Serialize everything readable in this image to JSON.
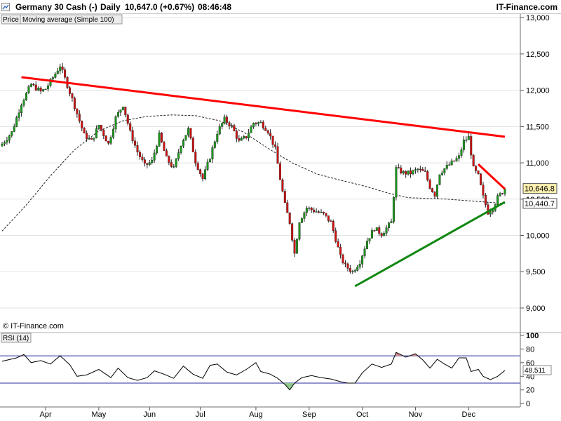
{
  "header": {
    "instrument": "Germany 30 Cash (-)",
    "interval": "Daily",
    "last_change": "10,647.0 (+0.67%)",
    "time": "08:46:48",
    "brand": "IT-Finance.com"
  },
  "legend": {
    "price_tab": "Price",
    "ma_tab": "Moving average (Simple 100)"
  },
  "watermark": "© IT-Finance.com",
  "rsi": {
    "label": "RSI (14)",
    "value_tag": "48.511"
  },
  "colors": {
    "up": "#1a9a1a",
    "down": "#d01010",
    "resistance": "#ff0000",
    "support": "#118811",
    "ma": "#222222",
    "osc_fill_over": "#d28a8a",
    "osc_fill_under": "#8cc88c"
  },
  "price_tags": {
    "last": "10,646.8",
    "hidden": "10,500",
    "ma": "10,440.7"
  },
  "chart_data": [
    {
      "type": "candlestick",
      "title": "Germany 30 Cash (-)",
      "ylim": [
        8700,
        13050
      ],
      "yticks": [
        9000,
        9500,
        10000,
        10500,
        11000,
        11500,
        12000,
        12500,
        13000
      ],
      "ytick_labels": [
        "9,000",
        "9,500",
        "10,000",
        "10,500",
        "11,000",
        "11,500",
        "12,000",
        "12,500",
        "13,000"
      ],
      "month_labels": [
        "Apr",
        "May",
        "Jun",
        "Jul",
        "Aug",
        "Sep",
        "Oct",
        "Nov",
        "Dec"
      ],
      "month_positions": [
        18,
        40,
        61,
        82,
        105,
        127,
        149,
        171,
        193
      ],
      "close_path": [
        [
          0,
          11260
        ],
        [
          4,
          11420
        ],
        [
          8,
          11820
        ],
        [
          12,
          12080
        ],
        [
          16,
          11980
        ],
        [
          18,
          12020
        ],
        [
          20,
          12120
        ],
        [
          24,
          12340
        ],
        [
          27,
          12070
        ],
        [
          30,
          11780
        ],
        [
          34,
          11380
        ],
        [
          37,
          11300
        ],
        [
          40,
          11520
        ],
        [
          44,
          11260
        ],
        [
          47,
          11620
        ],
        [
          50,
          11800
        ],
        [
          53,
          11420
        ],
        [
          56,
          11150
        ],
        [
          59,
          10960
        ],
        [
          62,
          11020
        ],
        [
          65,
          11380
        ],
        [
          68,
          11060
        ],
        [
          71,
          10920
        ],
        [
          74,
          11260
        ],
        [
          77,
          11460
        ],
        [
          80,
          11020
        ],
        [
          83,
          10780
        ],
        [
          86,
          11080
        ],
        [
          89,
          11420
        ],
        [
          92,
          11600
        ],
        [
          95,
          11500
        ],
        [
          98,
          11290
        ],
        [
          101,
          11360
        ],
        [
          104,
          11550
        ],
        [
          107,
          11550
        ],
        [
          110,
          11440
        ],
        [
          113,
          11190
        ],
        [
          115,
          10780
        ],
        [
          117,
          10420
        ],
        [
          119,
          10180
        ],
        [
          121,
          9750
        ],
        [
          123,
          10200
        ],
        [
          126,
          10380
        ],
        [
          130,
          10330
        ],
        [
          133,
          10290
        ],
        [
          136,
          10180
        ],
        [
          138,
          9950
        ],
        [
          140,
          9700
        ],
        [
          142,
          9580
        ],
        [
          145,
          9500
        ],
        [
          148,
          9640
        ],
        [
          151,
          9930
        ],
        [
          154,
          10100
        ],
        [
          157,
          10020
        ],
        [
          159,
          10100
        ],
        [
          161,
          10180
        ],
        [
          163,
          10920
        ],
        [
          166,
          10860
        ],
        [
          169,
          10860
        ],
        [
          172,
          10910
        ],
        [
          175,
          10860
        ],
        [
          177,
          10670
        ],
        [
          179,
          10560
        ],
        [
          181,
          10860
        ],
        [
          183,
          10920
        ],
        [
          186,
          11000
        ],
        [
          189,
          11080
        ],
        [
          191,
          11300
        ],
        [
          193,
          11350
        ],
        [
          195,
          10920
        ],
        [
          197,
          10820
        ],
        [
          199,
          10530
        ],
        [
          201,
          10320
        ],
        [
          203,
          10380
        ],
        [
          205,
          10520
        ],
        [
          207,
          10600
        ],
        [
          208,
          10647
        ]
      ],
      "moving_average": {
        "name": "Moving average (Simple 100)",
        "last": 10440.7,
        "path": [
          [
            0,
            10060
          ],
          [
            10,
            10420
          ],
          [
            20,
            10820
          ],
          [
            30,
            11180
          ],
          [
            40,
            11440
          ],
          [
            50,
            11580
          ],
          [
            60,
            11640
          ],
          [
            70,
            11660
          ],
          [
            80,
            11650
          ],
          [
            90,
            11580
          ],
          [
            100,
            11420
          ],
          [
            110,
            11200
          ],
          [
            120,
            11000
          ],
          [
            130,
            10850
          ],
          [
            140,
            10760
          ],
          [
            150,
            10680
          ],
          [
            160,
            10580
          ],
          [
            168,
            10520
          ],
          [
            176,
            10510
          ],
          [
            184,
            10500
          ],
          [
            192,
            10480
          ],
          [
            200,
            10460
          ],
          [
            208,
            10440
          ]
        ]
      },
      "trendlines": [
        {
          "kind": "resistance",
          "from": [
            8,
            12180
          ],
          "to": [
            208,
            11360
          ]
        },
        {
          "kind": "support",
          "from": [
            146,
            9300
          ],
          "to": [
            208,
            10460
          ]
        },
        {
          "kind": "resistance",
          "from": [
            197,
            10980
          ],
          "to": [
            208,
            10640
          ]
        }
      ],
      "last": 10646.8,
      "ma_last": 10440.7
    },
    {
      "type": "line",
      "title": "RSI (14)",
      "ylim": [
        -5,
        102
      ],
      "yticks": [
        0,
        20,
        40,
        60,
        80,
        100
      ],
      "levels": [
        70,
        30
      ],
      "last": 48.511,
      "path": [
        [
          0,
          62
        ],
        [
          6,
          67
        ],
        [
          9,
          72
        ],
        [
          12,
          60
        ],
        [
          16,
          63
        ],
        [
          20,
          58
        ],
        [
          24,
          70
        ],
        [
          28,
          57
        ],
        [
          31,
          40
        ],
        [
          35,
          42
        ],
        [
          40,
          50
        ],
        [
          45,
          38
        ],
        [
          48,
          52
        ],
        [
          52,
          38
        ],
        [
          56,
          34
        ],
        [
          60,
          38
        ],
        [
          63,
          48
        ],
        [
          67,
          43
        ],
        [
          71,
          37
        ],
        [
          75,
          55
        ],
        [
          79,
          43
        ],
        [
          83,
          37
        ],
        [
          86,
          56
        ],
        [
          89,
          58
        ],
        [
          93,
          46
        ],
        [
          97,
          42
        ],
        [
          101,
          50
        ],
        [
          105,
          60
        ],
        [
          107,
          47
        ],
        [
          111,
          43
        ],
        [
          114,
          37
        ],
        [
          117,
          28
        ],
        [
          119,
          20
        ],
        [
          121,
          30
        ],
        [
          124,
          38
        ],
        [
          128,
          41
        ],
        [
          132,
          38
        ],
        [
          136,
          36
        ],
        [
          140,
          32
        ],
        [
          143,
          30
        ],
        [
          146,
          30
        ],
        [
          149,
          45
        ],
        [
          153,
          58
        ],
        [
          157,
          53
        ],
        [
          161,
          58
        ],
        [
          163,
          75
        ],
        [
          167,
          68
        ],
        [
          171,
          73
        ],
        [
          174,
          64
        ],
        [
          177,
          52
        ],
        [
          180,
          65
        ],
        [
          183,
          58
        ],
        [
          186,
          52
        ],
        [
          189,
          67
        ],
        [
          192,
          67
        ],
        [
          194,
          47
        ],
        [
          197,
          50
        ],
        [
          199,
          40
        ],
        [
          202,
          35
        ],
        [
          205,
          40
        ],
        [
          208,
          48.511
        ]
      ]
    }
  ]
}
